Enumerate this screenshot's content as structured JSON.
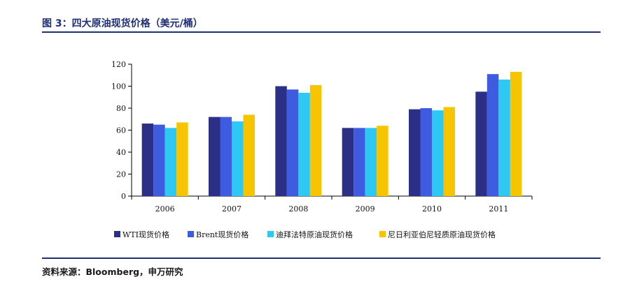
{
  "header": {
    "title": "图 3：四大原油现货价格（美元/桶）"
  },
  "footer": {
    "source": "资料来源：Bloomberg，申万研究"
  },
  "chart_data": {
    "type": "bar",
    "title": "图 3：四大原油现货价格（美元/桶）",
    "xlabel": "",
    "ylabel": "",
    "categories": [
      "2006",
      "2007",
      "2008",
      "2009",
      "2010",
      "2011"
    ],
    "yticks": [
      "0",
      "20",
      "40",
      "60",
      "80",
      "100",
      "120"
    ],
    "ylim": [
      0,
      120
    ],
    "grid": false,
    "legend_position": "bottom",
    "series": [
      {
        "name": "WTI现货价格",
        "color": "#2b2f86",
        "values": [
          66,
          72,
          100,
          62,
          79,
          95
        ]
      },
      {
        "name": "Brent现货价格",
        "color": "#3f5be0",
        "values": [
          65,
          72,
          97,
          62,
          80,
          111
        ]
      },
      {
        "name": "迪拜法特原油现货价格",
        "color": "#2ec8f4",
        "values": [
          62,
          68,
          94,
          62,
          78,
          106
        ]
      },
      {
        "name": "尼日利亚伯尼轻质原油现货价格",
        "color": "#f6c400",
        "values": [
          67,
          74,
          101,
          64,
          81,
          113
        ]
      }
    ]
  }
}
